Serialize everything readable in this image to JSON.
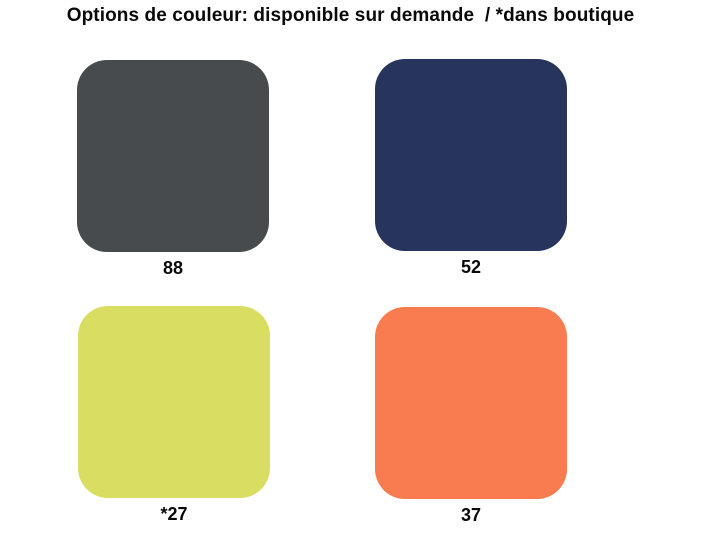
{
  "title": "Options de couleur: disponible sur demande  / *dans boutique",
  "swatches": [
    {
      "label": "88",
      "color": "#474b4e"
    },
    {
      "label": "52",
      "color": "#27345c"
    },
    {
      "label": "*27",
      "color": "#d9de62"
    },
    {
      "label": "37",
      "color": "#f97c50"
    }
  ]
}
